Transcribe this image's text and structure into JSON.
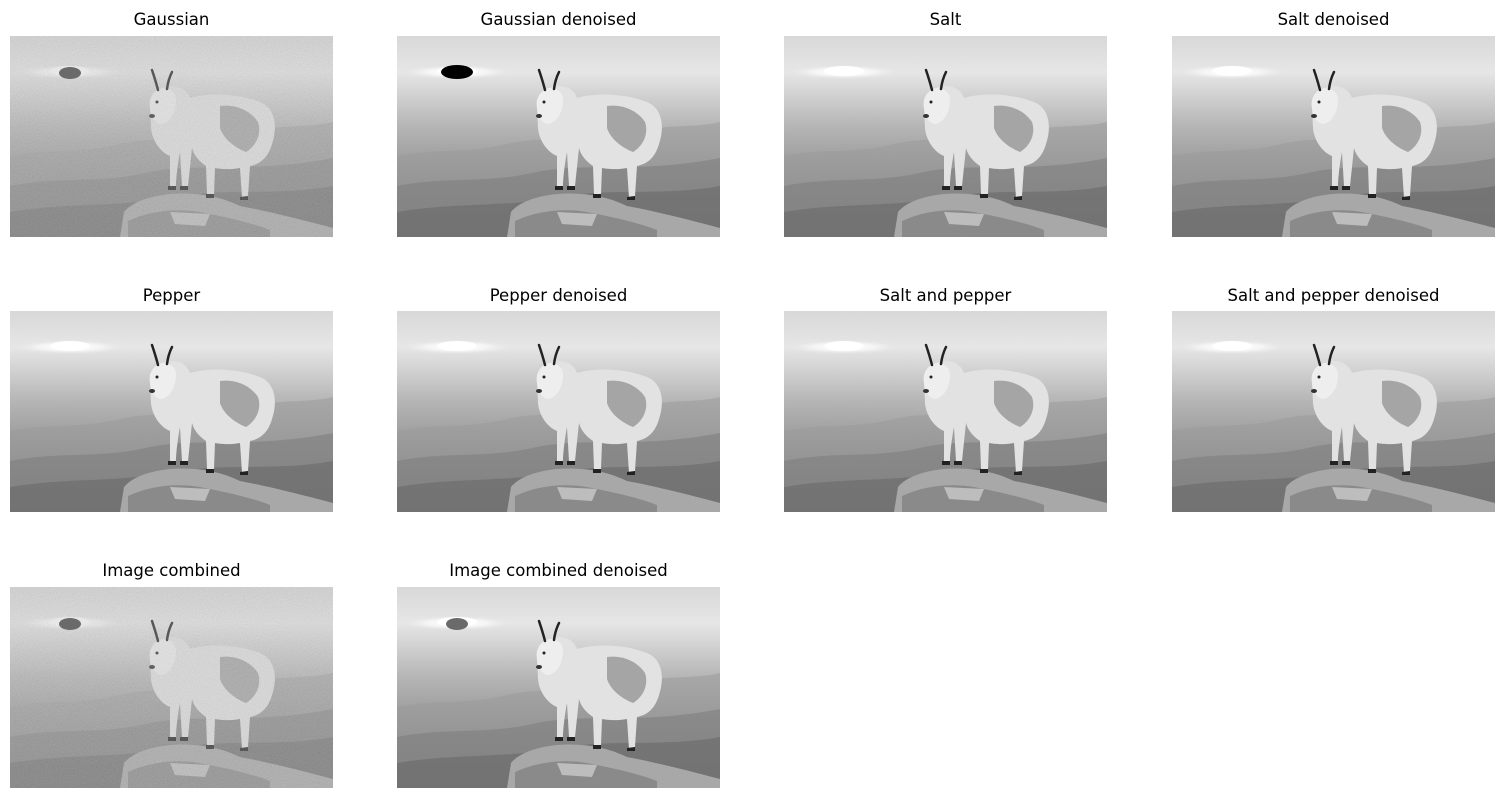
{
  "panels": [
    {
      "title": "Gaussian",
      "variant": "gaussian",
      "icon": "goat-grayscale-image"
    },
    {
      "title": "Gaussian denoised",
      "variant": "gaussian-denoised",
      "icon": "goat-grayscale-image"
    },
    {
      "title": "Salt",
      "variant": "salt",
      "icon": "goat-grayscale-image"
    },
    {
      "title": "Salt denoised",
      "variant": "salt-denoised",
      "icon": "goat-grayscale-image"
    },
    {
      "title": "Pepper",
      "variant": "pepper",
      "icon": "goat-grayscale-image"
    },
    {
      "title": "Pepper denoised",
      "variant": "pepper-denoised",
      "icon": "goat-grayscale-image"
    },
    {
      "title": "Salt and pepper",
      "variant": "salt-and-pepper",
      "icon": "goat-grayscale-image"
    },
    {
      "title": "Salt and pepper denoised",
      "variant": "salt-and-pepper-denoised",
      "icon": "goat-grayscale-image"
    },
    {
      "title": "Image combined",
      "variant": "image-combined",
      "icon": "goat-grayscale-image"
    },
    {
      "title": "Image combined denoised",
      "variant": "image-combined-denoised",
      "icon": "goat-grayscale-image"
    }
  ]
}
